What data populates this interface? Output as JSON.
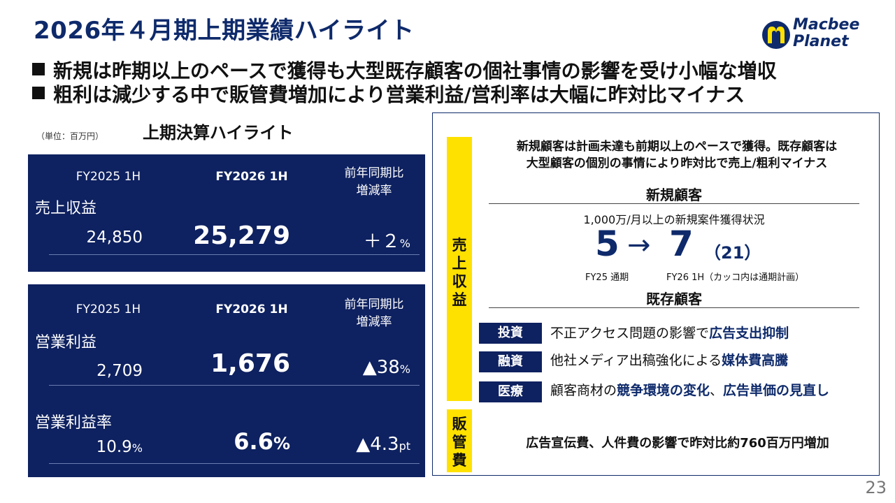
{
  "title": "2026年４月期上期業績ハイライト",
  "bullets": [
    "新規は昨期以上のペースで獲得も大型既存顧客の個社事情の影響を受け小幅な増収",
    "粗利は減少する中で販管費増加により営業利益/営利率は大幅に昨対比マイナス"
  ],
  "logo": {
    "line1": "Macbee",
    "line2": "Planet"
  },
  "left": {
    "unit": "（単位：百万円）",
    "title": "上期決算ハイライト",
    "headers": {
      "prev": "FY2025 1H",
      "curr": "FY2026 1H",
      "chg_line1": "前年同期比",
      "chg_line2": "増減率"
    },
    "sales": {
      "label": "売上収益",
      "prev": "24,850",
      "curr": "25,279",
      "chg": "＋２",
      "chg_unit": "%"
    },
    "op_profit": {
      "label": "営業利益",
      "prev": "2,709",
      "curr": "1,676",
      "chg": "▲38",
      "chg_unit": "%"
    },
    "op_margin": {
      "label": "営業利益率",
      "prev": "10.9",
      "prev_unit": "%",
      "curr": "6.6",
      "curr_unit": "%",
      "chg": "▲4.3",
      "chg_unit": "pt"
    }
  },
  "right": {
    "band_sales": "売上収益",
    "band_sga": "販管費",
    "summary_line1": "新規顧客は計画未達も前期以上のペースで獲得。既存顧客は",
    "summary_line2": "大型顧客の個別の事情により昨対比で売上/粗利マイナス",
    "new_heading": "新規顧客",
    "new_caption": "1,000万/月以上の新規案件獲得状況",
    "new_from": "5",
    "new_arrow": "→",
    "new_to": "7",
    "new_plan": "（21）",
    "new_from_label": "FY25 通期",
    "new_to_label": "FY26 1H（カッコ内は通期計画）",
    "existing_heading": "既存顧客",
    "items": [
      {
        "tag": "投資",
        "pre": "不正アクセス問題の影響で",
        "bold1": "広告支出抑制",
        "mid": "",
        "bold2": ""
      },
      {
        "tag": "融資",
        "pre": "他社メディア出稿強化による",
        "bold1": "媒体費高騰",
        "mid": "",
        "bold2": ""
      },
      {
        "tag": "医療",
        "pre": "顧客商材の",
        "bold1": "競争環境の変化",
        "mid": "、",
        "bold2": "広告単価の見直し"
      }
    ],
    "sga_text": "広告宣伝費、人件費の影響で昨対比約760百万円増加"
  },
  "page_number": "23",
  "colors": {
    "navy": "#0e2160",
    "title_blue": "#0e2a6b",
    "yellow": "#ffe100"
  }
}
